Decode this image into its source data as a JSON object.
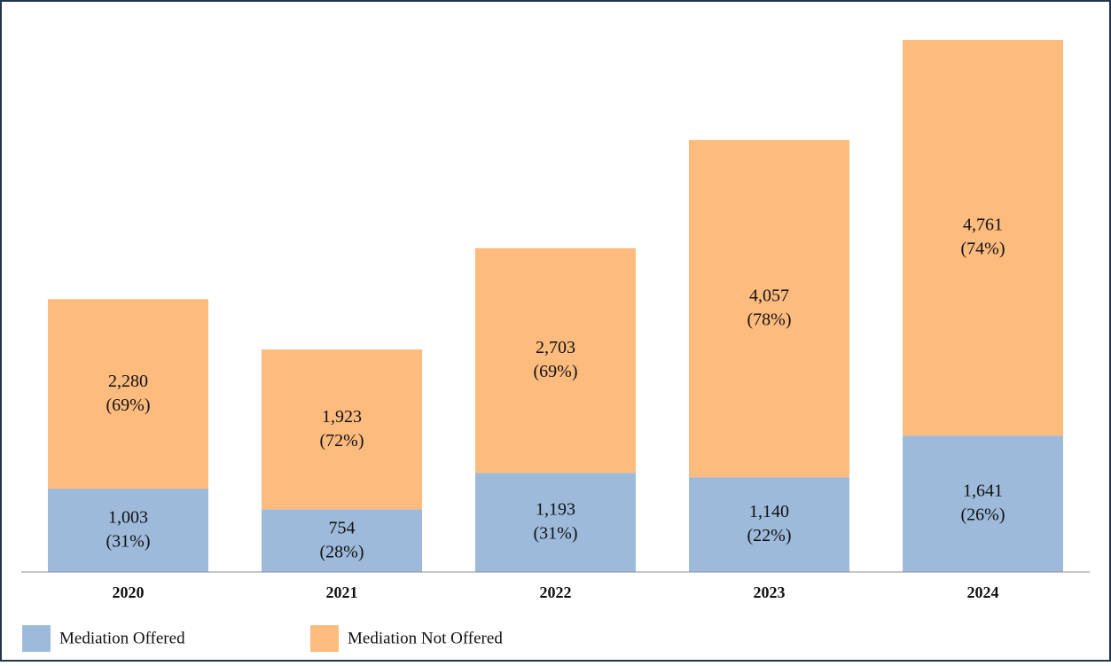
{
  "chart_data": {
    "type": "stacked_bar",
    "categories": [
      "2020",
      "2021",
      "2022",
      "2023",
      "2024"
    ],
    "series": [
      {
        "name": "Mediation Offered",
        "color": "#9dbadb",
        "values": [
          1003,
          754,
          1193,
          1140,
          1641
        ],
        "value_labels": [
          "1,003",
          "754",
          "1,193",
          "1,140",
          "1,641"
        ],
        "share_labels": [
          "(31%)",
          "(28%)",
          "(31%)",
          "(22%)",
          "(26%)"
        ]
      },
      {
        "name": "Mediation Not Offered",
        "color": "#fdbb7e",
        "values": [
          2280,
          1923,
          2703,
          4057,
          4761
        ],
        "value_labels": [
          "2,280",
          "1,923",
          "2,703",
          "4,057",
          "4,761"
        ],
        "share_labels": [
          "(69%)",
          "(72%)",
          "(69%)",
          "(78%)",
          "(74%)"
        ]
      }
    ],
    "legend": "bottom-left"
  }
}
